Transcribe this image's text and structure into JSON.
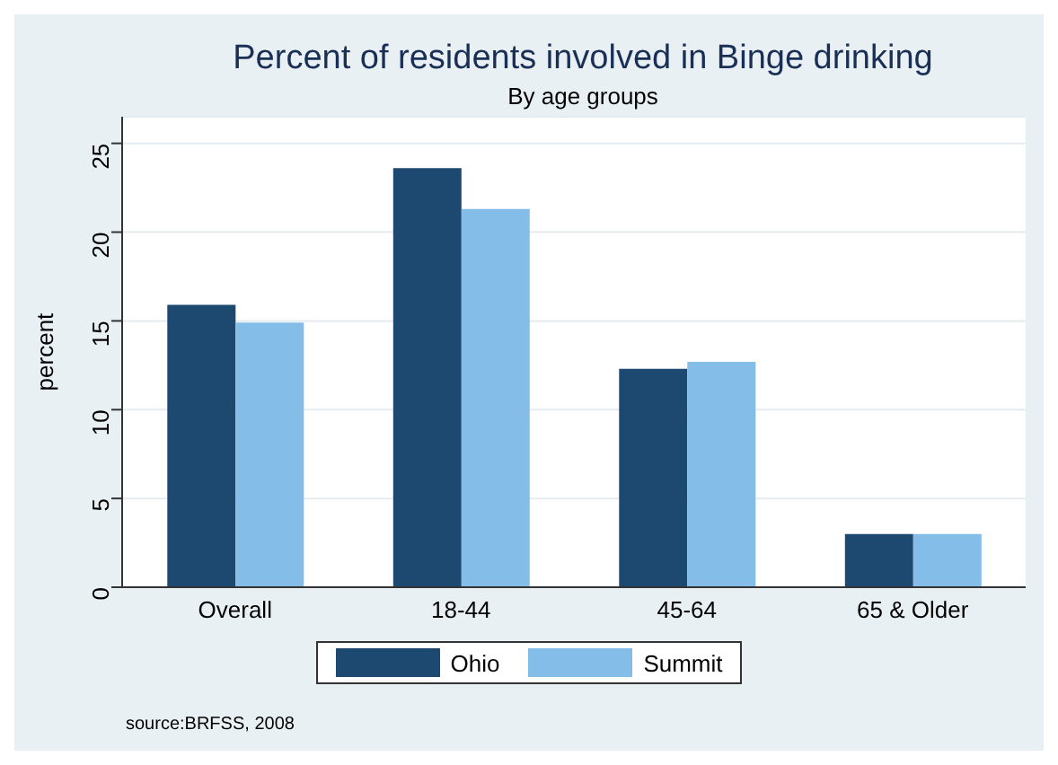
{
  "chart_data": {
    "type": "bar",
    "title": "Percent of residents involved in Binge drinking",
    "subtitle": "By age groups",
    "ylabel": "percent",
    "categories": [
      "Overall",
      "18-44",
      "45-64",
      "65 & Older"
    ],
    "series": [
      {
        "name": "Ohio",
        "color": "#1d4870",
        "values": [
          15.9,
          23.6,
          12.3,
          3.0
        ]
      },
      {
        "name": "Summit",
        "color": "#83bde8",
        "values": [
          14.9,
          21.3,
          12.7,
          3.0
        ]
      }
    ],
    "ylim": [
      0,
      26.5
    ],
    "yticks": [
      0,
      5,
      10,
      15,
      20,
      25
    ],
    "grid": "y",
    "legend": "bottom",
    "annotations": [
      "source:BRFSS, 2008"
    ]
  }
}
